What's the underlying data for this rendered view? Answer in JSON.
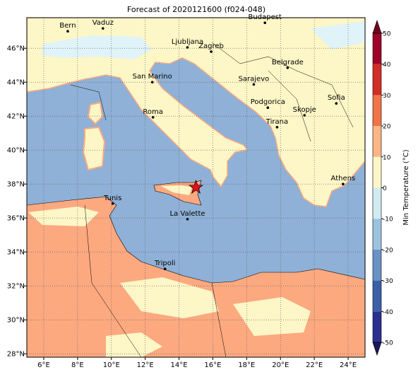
{
  "title": "Forecast of 2020121600 (f024-048)",
  "map": {
    "xlim": [
      5,
      25
    ],
    "ylim": [
      27.8,
      47.8
    ],
    "xticks": [
      {
        "value": 6,
        "label": "6°E"
      },
      {
        "value": 8,
        "label": "8°E"
      },
      {
        "value": 10,
        "label": "10°E"
      },
      {
        "value": 12,
        "label": "12°E"
      },
      {
        "value": 14,
        "label": "14°E"
      },
      {
        "value": 16,
        "label": "16°E"
      },
      {
        "value": 18,
        "label": "18°E"
      },
      {
        "value": 20,
        "label": "20°E"
      },
      {
        "value": 22,
        "label": "22°E"
      },
      {
        "value": 24,
        "label": "24°E"
      }
    ],
    "yticks": [
      {
        "value": 28,
        "label": "28°N"
      },
      {
        "value": 30,
        "label": "30°N"
      },
      {
        "value": 32,
        "label": "32°N"
      },
      {
        "value": 34,
        "label": "34°N"
      },
      {
        "value": 36,
        "label": "36°N"
      },
      {
        "value": 38,
        "label": "38°N"
      },
      {
        "value": 40,
        "label": "40°N"
      },
      {
        "value": 42,
        "label": "42°N"
      },
      {
        "value": 44,
        "label": "44°N"
      },
      {
        "value": 46,
        "label": "46°N"
      }
    ],
    "grid": true,
    "marker": {
      "lon": 15.0,
      "lat": 37.8,
      "color": "#e0101a"
    },
    "cities": [
      {
        "name": "Bern",
        "lon": 7.42,
        "lat": 47.0
      },
      {
        "name": "Vaduz",
        "lon": 9.5,
        "lat": 47.17
      },
      {
        "name": "Budapest",
        "lon": 19.08,
        "lat": 47.5
      },
      {
        "name": "Ljubljana",
        "lon": 14.5,
        "lat": 46.05
      },
      {
        "name": "Zagreb",
        "lon": 15.9,
        "lat": 45.8
      },
      {
        "name": "Belgrade",
        "lon": 20.42,
        "lat": 44.85
      },
      {
        "name": "San Marino",
        "lon": 12.42,
        "lat": 44.0
      },
      {
        "name": "Sarajevo",
        "lon": 18.42,
        "lat": 43.87
      },
      {
        "name": "Sofia",
        "lon": 23.3,
        "lat": 42.75
      },
      {
        "name": "Podgorica",
        "lon": 19.25,
        "lat": 42.5
      },
      {
        "name": "Skopje",
        "lon": 21.42,
        "lat": 42.05
      },
      {
        "name": "Roma",
        "lon": 12.46,
        "lat": 41.93
      },
      {
        "name": "Tirana",
        "lon": 19.8,
        "lat": 41.35
      },
      {
        "name": "Athens",
        "lon": 23.7,
        "lat": 38.0
      },
      {
        "name": "Tunis",
        "lon": 10.08,
        "lat": 36.85
      },
      {
        "name": "La Valette",
        "lon": 14.5,
        "lat": 35.93
      },
      {
        "name": "Tripoli",
        "lon": 13.17,
        "lat": 33.0
      }
    ]
  },
  "colorbar": {
    "label": "Min Temperature (°C)",
    "ticks": [
      -50,
      -40,
      -30,
      -20,
      -10,
      0,
      10,
      20,
      30,
      40,
      50
    ],
    "colors": [
      "#2c2f8f",
      "#3d5fa8",
      "#6a92c5",
      "#9cc2de",
      "#d2ebf3",
      "#fdf6c6",
      "#fcb584",
      "#f07448",
      "#d22d26",
      "#9e0226"
    ],
    "under": "#1c1660",
    "over": "#6f0020"
  }
}
